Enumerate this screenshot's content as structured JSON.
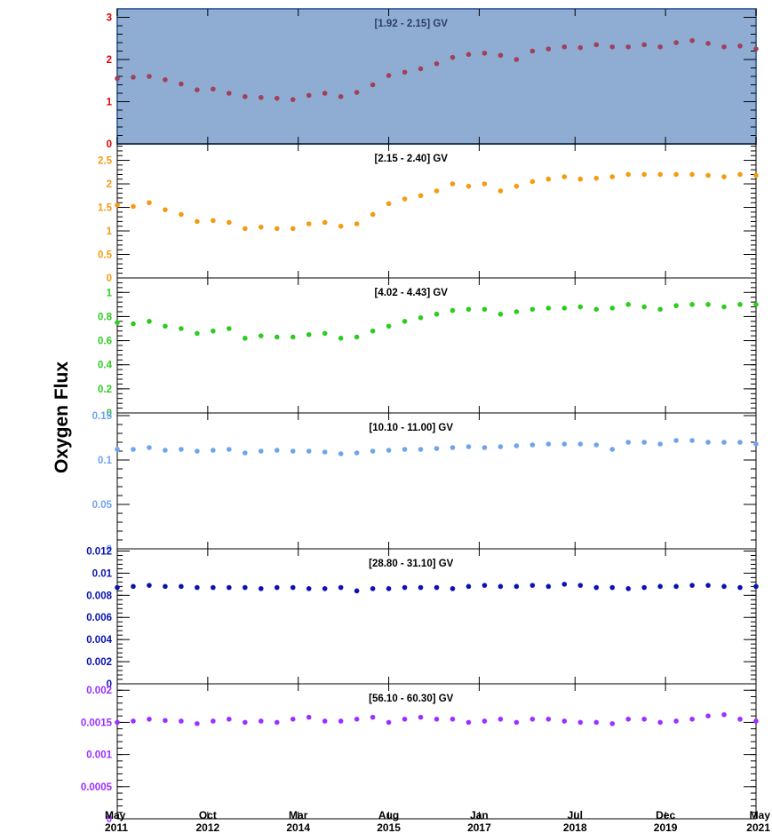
{
  "ylabel": "Oxygen Flux",
  "colors": {
    "highlight_fill": "#8fadd3",
    "highlight_border": "#4a6fa5",
    "axis": "#000000"
  },
  "x_ticks": [
    {
      "month": "May",
      "year": "2011",
      "date": "2011-05"
    },
    {
      "month": "Oct",
      "year": "2012",
      "date": "2012-10"
    },
    {
      "month": "Mar",
      "year": "2014",
      "date": "2014-03"
    },
    {
      "month": "Aug",
      "year": "2015",
      "date": "2015-08"
    },
    {
      "month": "Jan",
      "year": "2017",
      "date": "2017-01"
    },
    {
      "month": "Jul",
      "year": "2018",
      "date": "2018-07"
    },
    {
      "month": "Dec",
      "year": "2019",
      "date": "2019-12"
    },
    {
      "month": "May",
      "year": "2021",
      "date": "2021-05"
    }
  ],
  "chart_data": [
    {
      "type": "scatter",
      "title": "[1.92 - 2.15] GV",
      "color": "#a0405a",
      "tick_color": "#e00000",
      "highlighted": true,
      "ylim": [
        0,
        3.2
      ],
      "yticks": [
        "0",
        "1",
        "2",
        "3"
      ],
      "ytick_values": [
        0,
        1,
        2,
        3
      ],
      "x_range": [
        "2011-05",
        "2021-05"
      ],
      "x_dates": [
        "2011-05",
        "2011-08",
        "2011-11",
        "2012-02",
        "2012-05",
        "2012-08",
        "2012-11",
        "2013-02",
        "2013-05",
        "2013-08",
        "2013-11",
        "2014-02",
        "2014-05",
        "2014-08",
        "2014-11",
        "2015-02",
        "2015-05",
        "2015-08",
        "2015-11",
        "2016-02",
        "2016-05",
        "2016-08",
        "2016-11",
        "2017-02",
        "2017-05",
        "2017-08",
        "2017-11",
        "2018-02",
        "2018-05",
        "2018-08",
        "2018-11",
        "2019-02",
        "2019-05",
        "2019-08",
        "2019-11",
        "2020-02",
        "2020-05",
        "2020-08",
        "2020-11",
        "2021-02",
        "2021-05"
      ],
      "values": [
        1.55,
        1.58,
        1.6,
        1.52,
        1.42,
        1.28,
        1.3,
        1.2,
        1.12,
        1.1,
        1.08,
        1.05,
        1.15,
        1.2,
        1.12,
        1.22,
        1.4,
        1.62,
        1.7,
        1.78,
        1.9,
        2.05,
        2.12,
        2.15,
        2.1,
        2.0,
        2.2,
        2.25,
        2.3,
        2.28,
        2.35,
        2.3,
        2.3,
        2.35,
        2.3,
        2.4,
        2.45,
        2.38,
        2.3,
        2.32,
        2.25
      ]
    },
    {
      "type": "scatter",
      "title": "[2.15 - 2.40] GV",
      "color": "#f39c12",
      "tick_color": "#f39c12",
      "highlighted": false,
      "ylim": [
        0,
        2.85
      ],
      "yticks": [
        "0",
        "0.5",
        "1",
        "1.5",
        "2",
        "2.5"
      ],
      "ytick_values": [
        0,
        0.5,
        1,
        1.5,
        2,
        2.5
      ],
      "x_range": [
        "2011-05",
        "2021-05"
      ],
      "x_dates": [
        "2011-05",
        "2011-08",
        "2011-11",
        "2012-02",
        "2012-05",
        "2012-08",
        "2012-11",
        "2013-02",
        "2013-05",
        "2013-08",
        "2013-11",
        "2014-02",
        "2014-05",
        "2014-08",
        "2014-11",
        "2015-02",
        "2015-05",
        "2015-08",
        "2015-11",
        "2016-02",
        "2016-05",
        "2016-08",
        "2016-11",
        "2017-02",
        "2017-05",
        "2017-08",
        "2017-11",
        "2018-02",
        "2018-05",
        "2018-08",
        "2018-11",
        "2019-02",
        "2019-05",
        "2019-08",
        "2019-11",
        "2020-02",
        "2020-05",
        "2020-08",
        "2020-11",
        "2021-02",
        "2021-05"
      ],
      "values": [
        1.55,
        1.52,
        1.6,
        1.45,
        1.35,
        1.2,
        1.22,
        1.18,
        1.05,
        1.08,
        1.05,
        1.05,
        1.15,
        1.18,
        1.1,
        1.15,
        1.35,
        1.58,
        1.68,
        1.75,
        1.85,
        2.0,
        1.95,
        2.0,
        1.85,
        1.95,
        2.05,
        2.1,
        2.15,
        2.1,
        2.12,
        2.15,
        2.2,
        2.2,
        2.2,
        2.2,
        2.2,
        2.18,
        2.15,
        2.2,
        2.18
      ]
    },
    {
      "type": "scatter",
      "title": "[4.02 - 4.43] GV",
      "color": "#2ecc1f",
      "tick_color": "#2ecc1f",
      "highlighted": false,
      "ylim": [
        0,
        1.12
      ],
      "yticks": [
        "0",
        "0.2",
        "0.4",
        "0.6",
        "0.8",
        "1"
      ],
      "ytick_values": [
        0,
        0.2,
        0.4,
        0.6,
        0.8,
        1
      ],
      "x_range": [
        "2011-05",
        "2021-05"
      ],
      "x_dates": [
        "2011-05",
        "2011-08",
        "2011-11",
        "2012-02",
        "2012-05",
        "2012-08",
        "2012-11",
        "2013-02",
        "2013-05",
        "2013-08",
        "2013-11",
        "2014-02",
        "2014-05",
        "2014-08",
        "2014-11",
        "2015-02",
        "2015-05",
        "2015-08",
        "2015-11",
        "2016-02",
        "2016-05",
        "2016-08",
        "2016-11",
        "2017-02",
        "2017-05",
        "2017-08",
        "2017-11",
        "2018-02",
        "2018-05",
        "2018-08",
        "2018-11",
        "2019-02",
        "2019-05",
        "2019-08",
        "2019-11",
        "2020-02",
        "2020-05",
        "2020-08",
        "2020-11",
        "2021-02",
        "2021-05"
      ],
      "values": [
        0.75,
        0.74,
        0.76,
        0.72,
        0.7,
        0.66,
        0.68,
        0.7,
        0.62,
        0.64,
        0.63,
        0.63,
        0.65,
        0.66,
        0.62,
        0.63,
        0.68,
        0.72,
        0.76,
        0.79,
        0.82,
        0.85,
        0.86,
        0.86,
        0.82,
        0.84,
        0.86,
        0.87,
        0.87,
        0.88,
        0.86,
        0.87,
        0.9,
        0.88,
        0.86,
        0.89,
        0.9,
        0.9,
        0.88,
        0.9,
        0.9
      ]
    },
    {
      "type": "scatter",
      "title": "[10.10 - 11.00] GV",
      "color": "#6fa3ef",
      "tick_color": "#6fa3ef",
      "highlighted": false,
      "ylim": [
        0,
        0.153
      ],
      "yticks": [
        "0",
        "0.05",
        "0.1",
        "0.15"
      ],
      "ytick_values": [
        0,
        0.05,
        0.1,
        0.15
      ],
      "x_range": [
        "2011-05",
        "2021-05"
      ],
      "x_dates": [
        "2011-05",
        "2011-08",
        "2011-11",
        "2012-02",
        "2012-05",
        "2012-08",
        "2012-11",
        "2013-02",
        "2013-05",
        "2013-08",
        "2013-11",
        "2014-02",
        "2014-05",
        "2014-08",
        "2014-11",
        "2015-02",
        "2015-05",
        "2015-08",
        "2015-11",
        "2016-02",
        "2016-05",
        "2016-08",
        "2016-11",
        "2017-02",
        "2017-05",
        "2017-08",
        "2017-11",
        "2018-02",
        "2018-05",
        "2018-08",
        "2018-11",
        "2019-02",
        "2019-05",
        "2019-08",
        "2019-11",
        "2020-02",
        "2020-05",
        "2020-08",
        "2020-11",
        "2021-02",
        "2021-05"
      ],
      "values": [
        0.112,
        0.112,
        0.114,
        0.111,
        0.112,
        0.11,
        0.111,
        0.112,
        0.108,
        0.11,
        0.111,
        0.11,
        0.11,
        0.109,
        0.107,
        0.108,
        0.11,
        0.111,
        0.112,
        0.112,
        0.113,
        0.114,
        0.115,
        0.114,
        0.115,
        0.116,
        0.117,
        0.118,
        0.118,
        0.118,
        0.117,
        0.112,
        0.12,
        0.12,
        0.118,
        0.122,
        0.122,
        0.12,
        0.12,
        0.12,
        0.118
      ]
    },
    {
      "type": "scatter",
      "title": "[28.80 - 31.10] GV",
      "color": "#0a12b0",
      "tick_color": "#0a12b0",
      "highlighted": false,
      "ylim": [
        0,
        0.0122
      ],
      "yticks": [
        "0",
        "0.002",
        "0.004",
        "0.006",
        "0.008",
        "0.01",
        "0.012"
      ],
      "ytick_values": [
        0,
        0.002,
        0.004,
        0.006,
        0.008,
        0.01,
        0.012
      ],
      "x_range": [
        "2011-05",
        "2021-05"
      ],
      "x_dates": [
        "2011-05",
        "2011-08",
        "2011-11",
        "2012-02",
        "2012-05",
        "2012-08",
        "2012-11",
        "2013-02",
        "2013-05",
        "2013-08",
        "2013-11",
        "2014-02",
        "2014-05",
        "2014-08",
        "2014-11",
        "2015-02",
        "2015-05",
        "2015-08",
        "2015-11",
        "2016-02",
        "2016-05",
        "2016-08",
        "2016-11",
        "2017-02",
        "2017-05",
        "2017-08",
        "2017-11",
        "2018-02",
        "2018-05",
        "2018-08",
        "2018-11",
        "2019-02",
        "2019-05",
        "2019-08",
        "2019-11",
        "2020-02",
        "2020-05",
        "2020-08",
        "2020-11",
        "2021-02",
        "2021-05"
      ],
      "values": [
        0.0087,
        0.0088,
        0.0089,
        0.0088,
        0.0088,
        0.0087,
        0.0087,
        0.0087,
        0.0087,
        0.0086,
        0.0087,
        0.0087,
        0.0086,
        0.0086,
        0.0087,
        0.0084,
        0.0086,
        0.0086,
        0.0087,
        0.0087,
        0.0087,
        0.0086,
        0.0088,
        0.0089,
        0.0088,
        0.0088,
        0.0089,
        0.0088,
        0.009,
        0.0089,
        0.0087,
        0.0087,
        0.0086,
        0.0087,
        0.0088,
        0.0088,
        0.0089,
        0.0089,
        0.0088,
        0.0087,
        0.0088
      ]
    },
    {
      "type": "scatter",
      "title": "[56.10 - 60.30] GV",
      "color": "#9b30ff",
      "tick_color": "#9b30ff",
      "highlighted": false,
      "ylim": [
        0,
        0.0021
      ],
      "yticks": [
        "0",
        "0.0005",
        "0.001",
        "0.0015",
        "0.002"
      ],
      "ytick_values": [
        0,
        0.0005,
        0.001,
        0.0015,
        0.002
      ],
      "x_range": [
        "2011-05",
        "2021-05"
      ],
      "x_dates": [
        "2011-05",
        "2011-08",
        "2011-11",
        "2012-02",
        "2012-05",
        "2012-08",
        "2012-11",
        "2013-02",
        "2013-05",
        "2013-08",
        "2013-11",
        "2014-02",
        "2014-05",
        "2014-08",
        "2014-11",
        "2015-02",
        "2015-05",
        "2015-08",
        "2015-11",
        "2016-02",
        "2016-05",
        "2016-08",
        "2016-11",
        "2017-02",
        "2017-05",
        "2017-08",
        "2017-11",
        "2018-02",
        "2018-05",
        "2018-08",
        "2018-11",
        "2019-02",
        "2019-05",
        "2019-08",
        "2019-11",
        "2020-02",
        "2020-05",
        "2020-08",
        "2020-11",
        "2021-02",
        "2021-05"
      ],
      "values": [
        0.0015,
        0.00152,
        0.00155,
        0.00153,
        0.00152,
        0.00148,
        0.00152,
        0.00155,
        0.0015,
        0.00152,
        0.0015,
        0.00155,
        0.00158,
        0.00152,
        0.00152,
        0.00155,
        0.00158,
        0.0015,
        0.00155,
        0.00158,
        0.00155,
        0.00155,
        0.0015,
        0.00152,
        0.00155,
        0.0015,
        0.00155,
        0.00155,
        0.00152,
        0.0015,
        0.0015,
        0.00148,
        0.00155,
        0.00155,
        0.0015,
        0.00152,
        0.00155,
        0.0016,
        0.00162,
        0.00155,
        0.00152
      ]
    }
  ]
}
